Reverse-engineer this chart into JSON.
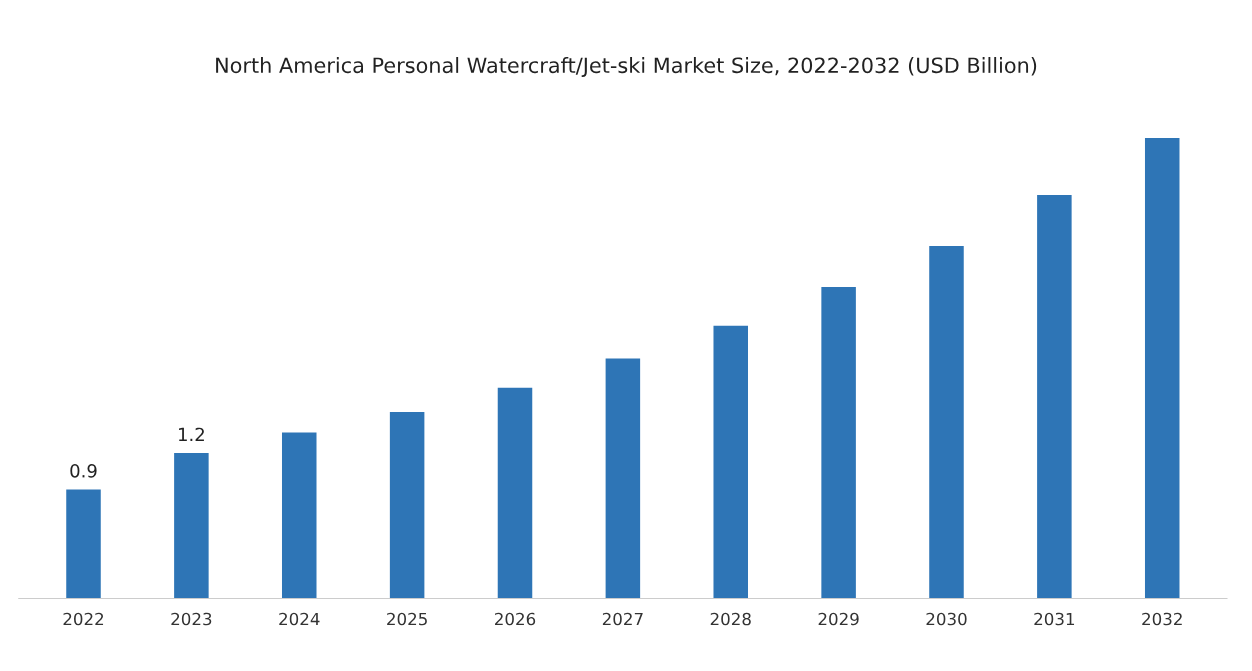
{
  "chart_data": {
    "type": "bar",
    "title": "North America Personal Watercraft/Jet-ski Market Size, 2022-2032 (USD Billion)",
    "categories": [
      "2022",
      "2023",
      "2024",
      "2025",
      "2026",
      "2027",
      "2028",
      "2029",
      "2030",
      "2031",
      "2032"
    ],
    "values": [
      0.9,
      1.2,
      1.37,
      1.54,
      1.74,
      1.98,
      2.25,
      2.57,
      2.91,
      3.33,
      3.8
    ],
    "value_labels": [
      "0.9",
      "1.2",
      null,
      null,
      null,
      null,
      null,
      null,
      null,
      null,
      null
    ],
    "color": "#2e75b6",
    "grid": false,
    "legend": false
  }
}
